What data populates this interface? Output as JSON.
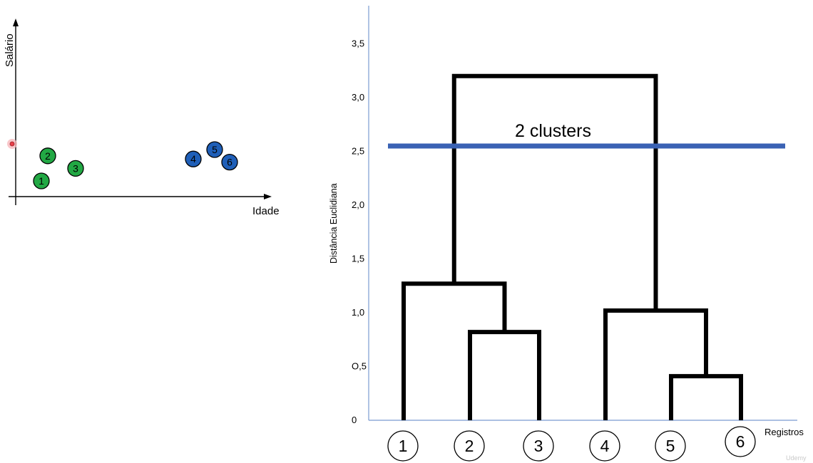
{
  "scatter": {
    "x_axis_label": "Idade",
    "y_axis_label": "Salário",
    "cursor_color": "#e8404a",
    "points": [
      {
        "label": "1",
        "idade": 1.2,
        "salario": 1.0,
        "cluster": "green"
      },
      {
        "label": "2",
        "idade": 1.5,
        "salario": 2.6,
        "cluster": "green"
      },
      {
        "label": "3",
        "idade": 2.8,
        "salario": 1.8,
        "cluster": "green"
      },
      {
        "label": "4",
        "idade": 8.3,
        "salario": 2.4,
        "cluster": "blue"
      },
      {
        "label": "5",
        "idade": 9.3,
        "salario": 3.0,
        "cluster": "blue"
      },
      {
        "label": "6",
        "idade": 10.0,
        "salario": 2.2,
        "cluster": "blue"
      }
    ],
    "x_range": [
      0,
      11
    ],
    "y_range": [
      0,
      7
    ],
    "colors": {
      "green": "#22a844",
      "blue": "#1f5fb8"
    }
  },
  "chart_data": {
    "type": "dendrogram",
    "ylabel": "Distância Euclidiana",
    "xlabel": "Registros",
    "ylim": [
      0,
      3.5
    ],
    "y_ticks": [
      {
        "value": 0,
        "label": "0"
      },
      {
        "value": 0.5,
        "label": "O,5"
      },
      {
        "value": 1.0,
        "label": "1,0"
      },
      {
        "value": 1.5,
        "label": "1,5"
      },
      {
        "value": 2.0,
        "label": "2,0"
      },
      {
        "value": 2.5,
        "label": "2,5"
      },
      {
        "value": 3.0,
        "label": "3,0"
      },
      {
        "value": 3.5,
        "label": "3,5"
      }
    ],
    "leaves": [
      "1",
      "2",
      "3",
      "4",
      "5",
      "6"
    ],
    "merges": [
      {
        "left": "2",
        "right": "3",
        "height": 0.82
      },
      {
        "left": "5",
        "right": "6",
        "height": 0.41
      },
      {
        "left": "1",
        "right": "2+3",
        "height": 1.27
      },
      {
        "left": "4",
        "right": "5+6",
        "height": 1.02
      },
      {
        "left": "1+2+3",
        "right": "4+5+6",
        "height": 3.2
      }
    ],
    "cut": {
      "height": 2.55,
      "label": "2 clusters",
      "color": "#3a62b4"
    },
    "axis_color": "#7a9bd0",
    "line_color": "#000000"
  },
  "watermark": "Udemy"
}
